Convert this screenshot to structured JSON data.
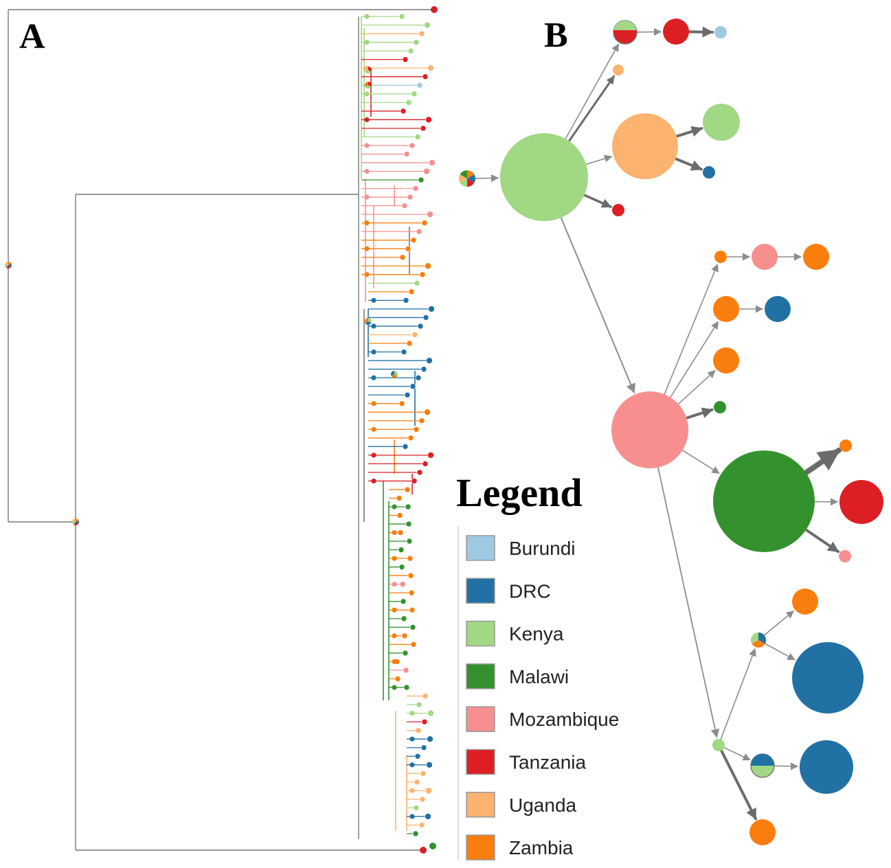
{
  "panels": {
    "a_label": "A",
    "b_label": "B"
  },
  "legend": {
    "title": "Legend",
    "entries": [
      {
        "label": "Burundi",
        "color": "#9ecae1"
      },
      {
        "label": "DRC",
        "color": "#2171a4"
      },
      {
        "label": "Kenya",
        "color": "#a1d884"
      },
      {
        "label": "Malawi",
        "color": "#33922e"
      },
      {
        "label": "Mozambique",
        "color": "#f88f8f"
      },
      {
        "label": "Tanzania",
        "color": "#dc1f24"
      },
      {
        "label": "Uganda",
        "color": "#fbb36f"
      },
      {
        "label": "Zambia",
        "color": "#f97e0d"
      }
    ]
  },
  "colors": {
    "branch": "#777777",
    "edge": "#8c8c8c",
    "Burundi": "#9ecae1",
    "DRC": "#2171a4",
    "Kenya": "#a1d884",
    "Malawi": "#33922e",
    "Mozambique": "#f88f8f",
    "Tanzania": "#dc1f24",
    "Uganda": "#fbb36f",
    "Zambia": "#f97e0d"
  },
  "tree": {
    "tip_countries": [
      "Kenya",
      "Kenya",
      "Uganda",
      "Kenya",
      "Kenya",
      "Tanzania",
      "Uganda",
      "Tanzania",
      "Burundi",
      "Kenya",
      "Kenya",
      "Tanzania",
      "Tanzania",
      "Tanzania",
      "Kenya",
      "Mozambique",
      "Mozambique",
      "Mozambique",
      "Mozambique",
      "Malawi",
      "Mozambique",
      "Mozambique",
      "Mozambique",
      "Mozambique",
      "Zambia",
      "Mozambique",
      "Zambia",
      "Zambia",
      "Zambia",
      "Zambia",
      "Zambia",
      "Kenya",
      "Zambia",
      "DRC",
      "DRC",
      "DRC",
      "DRC",
      "Uganda",
      "Zambia",
      "DRC",
      "DRC",
      "DRC",
      "DRC",
      "DRC",
      "DRC",
      "Zambia",
      "Zambia",
      "Zambia",
      "Zambia",
      "Zambia",
      "DRC",
      "Tanzania",
      "Tanzania",
      "Tanzania",
      "Tanzania",
      "Zambia",
      "Zambia",
      "Malawi",
      "Zambia",
      "Malawi",
      "Zambia",
      "Malawi",
      "Malawi",
      "Zambia",
      "Malawi",
      "Zambia",
      "Mozambique",
      "Zambia",
      "Malawi",
      "Zambia",
      "Malawi",
      "Malawi",
      "Zambia",
      "Zambia",
      "Malawi",
      "Zambia",
      "Mozambique",
      "Zambia",
      "Malawi",
      "Uganda",
      "Kenya",
      "Kenya",
      "Tanzania",
      "Uganda",
      "DRC",
      "DRC",
      "DRC",
      "DRC",
      "Uganda",
      "Uganda",
      "Uganda",
      "Uganda",
      "Kenya",
      "DRC",
      "Uganda",
      "Malawi"
    ]
  },
  "network": {
    "nodes": [
      {
        "id": "root",
        "country": "mixed"
      },
      {
        "id": "kenya-hub",
        "country": "Kenya"
      },
      {
        "id": "mixed-top",
        "country": "mixed"
      },
      {
        "id": "tanzania-top",
        "country": "Tanzania"
      },
      {
        "id": "burundi-top",
        "country": "Burundi"
      },
      {
        "id": "uganda-small",
        "country": "Uganda"
      },
      {
        "id": "uganda-big",
        "country": "Uganda"
      },
      {
        "id": "kenya-right",
        "country": "Kenya"
      },
      {
        "id": "drc-small",
        "country": "DRC"
      },
      {
        "id": "tanzania-small",
        "country": "Tanzania"
      },
      {
        "id": "mozambique-hub",
        "country": "Mozambique"
      },
      {
        "id": "zambia-a",
        "country": "Zambia"
      },
      {
        "id": "mozambique-b",
        "country": "Mozambique"
      },
      {
        "id": "zambia-c",
        "country": "Zambia"
      },
      {
        "id": "zambia-d",
        "country": "Zambia"
      },
      {
        "id": "drc-d",
        "country": "DRC"
      },
      {
        "id": "zambia-e",
        "country": "Zambia"
      },
      {
        "id": "malawi-small",
        "country": "Malawi"
      },
      {
        "id": "malawi-hub",
        "country": "Malawi"
      },
      {
        "id": "zambia-f",
        "country": "Zambia"
      },
      {
        "id": "tanzania-f",
        "country": "Tanzania"
      },
      {
        "id": "mozambique-f",
        "country": "Mozambique"
      },
      {
        "id": "kenya-low",
        "country": "Kenya"
      },
      {
        "id": "mixed-low1",
        "country": "mixed"
      },
      {
        "id": "zambia-g",
        "country": "Zambia"
      },
      {
        "id": "drc-g",
        "country": "DRC"
      },
      {
        "id": "mixed-low2",
        "country": "mixed"
      },
      {
        "id": "drc-h",
        "country": "DRC"
      },
      {
        "id": "zambia-h",
        "country": "Zambia"
      }
    ]
  }
}
